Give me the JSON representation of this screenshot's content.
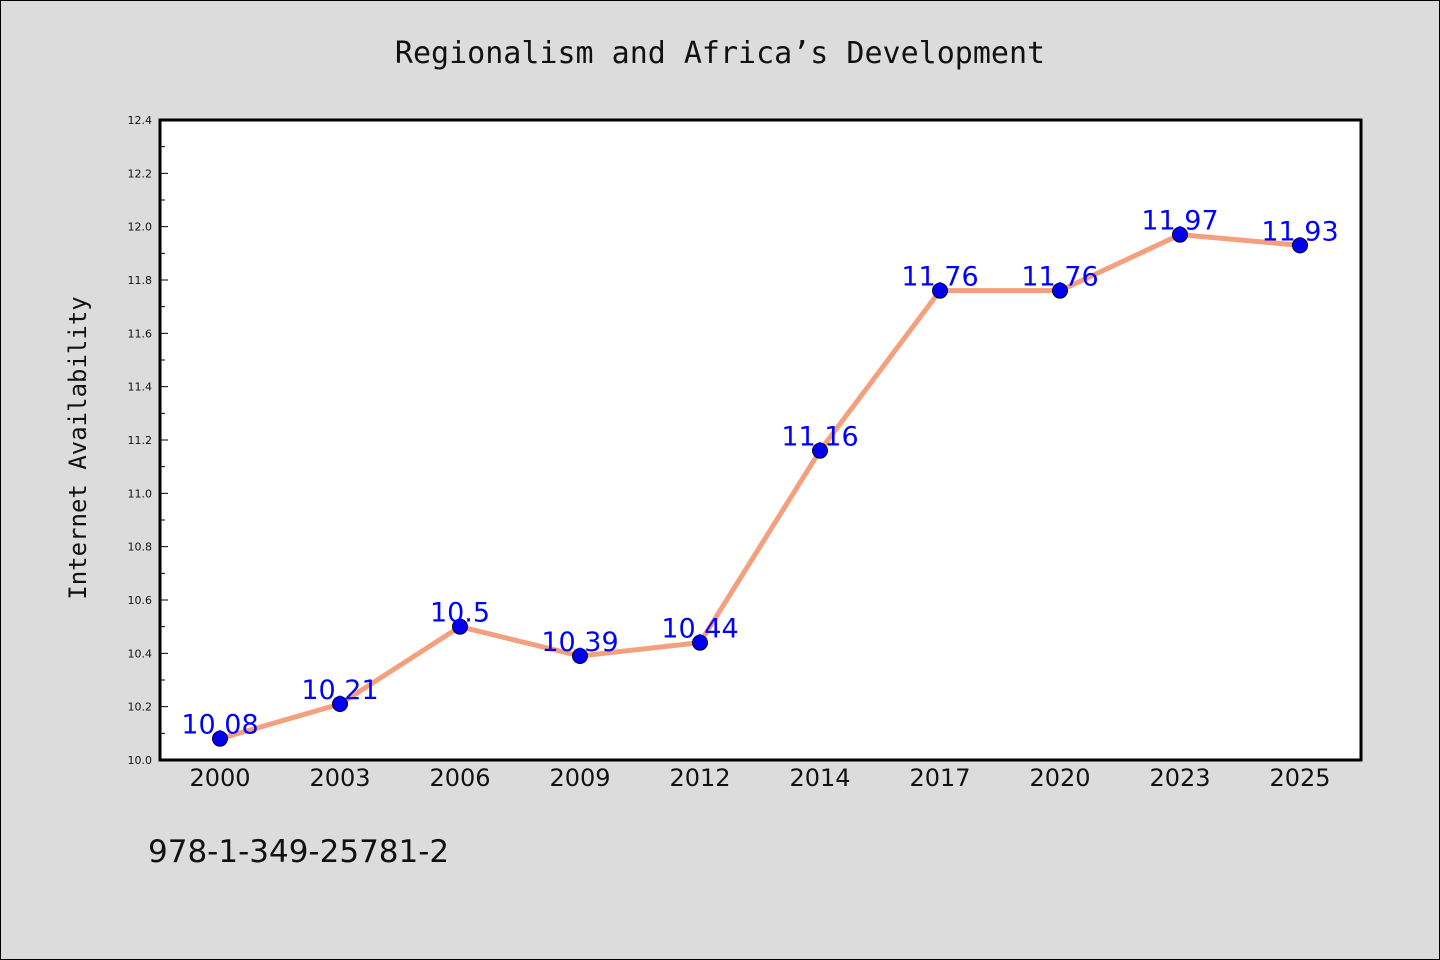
{
  "chart_data": {
    "type": "line",
    "title": "Regionalism and Africa’s Development",
    "xlabel": "",
    "ylabel": "Internet Availability",
    "categories": [
      "2000",
      "2003",
      "2006",
      "2009",
      "2012",
      "2014",
      "2017",
      "2020",
      "2023",
      "2025"
    ],
    "series": [
      {
        "values": [
          10.08,
          10.21,
          10.5,
          10.39,
          10.44,
          11.16,
          11.76,
          11.76,
          11.97,
          11.93
        ],
        "labels": [
          "10.08",
          "10.21",
          "10.5",
          "10.39",
          "10.44",
          "11.16",
          "11.76",
          "11.76",
          "11.97",
          "11.93"
        ],
        "line_color": "#f4a07e",
        "marker_color": "#0000ee"
      }
    ],
    "ylim": [
      10.0,
      12.4
    ],
    "yticks": [
      "10.0",
      "10.2",
      "10.4",
      "10.6",
      "10.8",
      "11.0",
      "11.2",
      "11.4",
      "11.6",
      "11.8",
      "12.0",
      "12.2",
      "12.4"
    ],
    "label_color": "#0000ff",
    "grid": false,
    "legend": "none"
  },
  "footer": {
    "isbn": "978-1-349-25781-2"
  }
}
